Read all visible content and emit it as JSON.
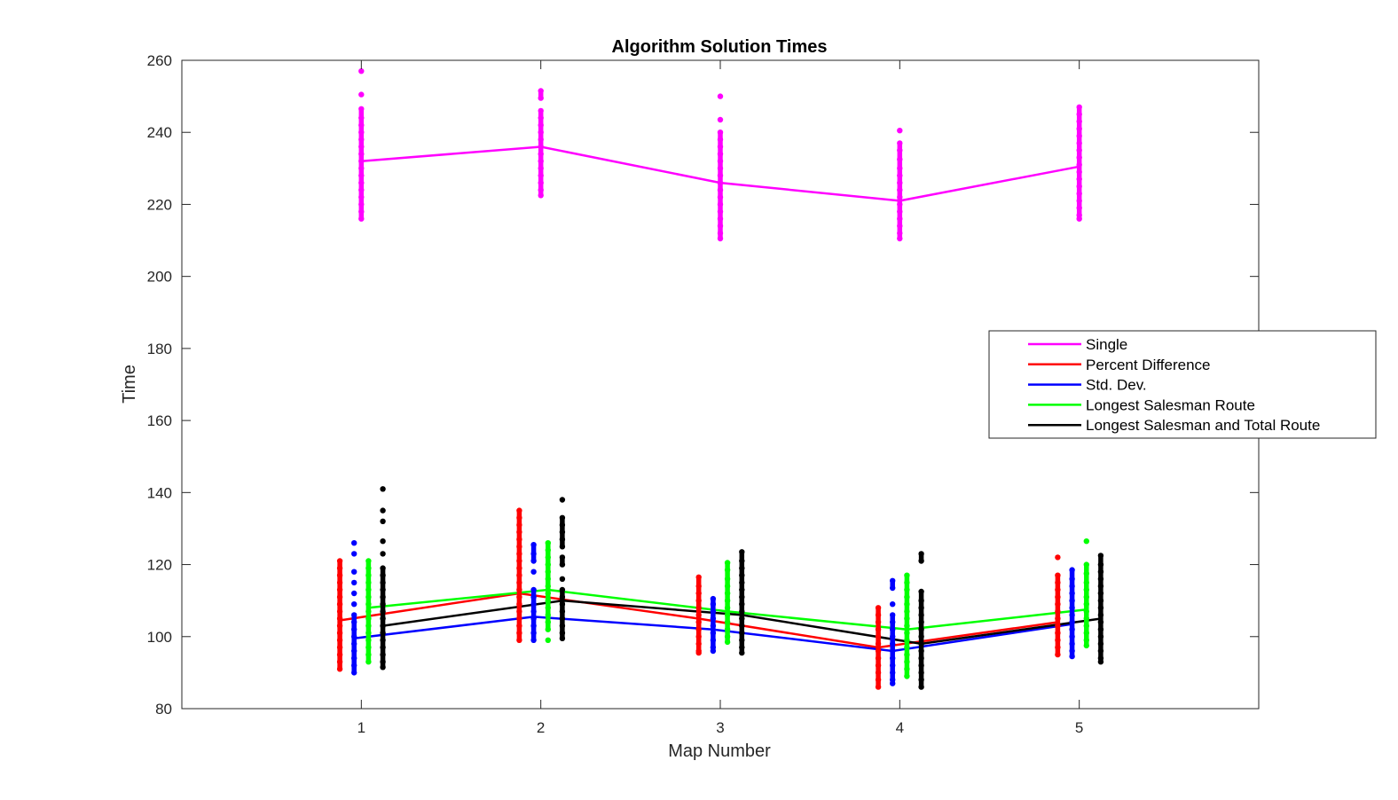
{
  "chart_data": {
    "type": "scatter",
    "title": "Algorithm Solution Times",
    "xlabel": "Map Number",
    "ylabel": "Time",
    "xlim": [
      0,
      6
    ],
    "ylim": [
      80,
      260
    ],
    "x_ticks": [
      1,
      2,
      3,
      4,
      5
    ],
    "y_ticks": [
      80,
      100,
      120,
      140,
      160,
      180,
      200,
      220,
      240,
      260
    ],
    "grid": false,
    "legend_position": "right",
    "series": [
      {
        "name": "Single",
        "color": "#ff00ff",
        "x_offset": 0,
        "means": [
          232,
          236,
          226,
          221,
          230.5
        ],
        "points": [
          [
            257,
            250.5,
            246.5,
            244,
            242,
            240,
            238,
            236,
            234,
            232,
            230,
            228,
            226,
            224,
            222,
            220,
            218,
            216
          ],
          [
            251.5,
            249.5,
            246,
            244,
            242,
            240,
            238,
            236,
            234,
            232,
            230,
            228,
            226,
            224,
            222.5
          ],
          [
            250,
            243.5,
            240,
            238,
            236,
            234,
            232,
            230,
            228,
            226,
            224,
            222,
            220,
            218,
            216,
            214,
            212,
            210.5
          ],
          [
            240.5,
            237,
            235,
            232.5,
            230,
            228,
            226,
            224,
            222,
            220,
            218,
            216,
            214,
            212,
            210.5
          ],
          [
            247,
            245,
            243,
            241,
            239,
            237,
            235,
            233,
            231,
            229,
            227,
            225,
            223,
            221,
            219,
            217,
            216
          ]
        ]
      },
      {
        "name": "Percent Difference",
        "color": "#ff0000",
        "x_offset": -0.12,
        "means": [
          104.5,
          112,
          105,
          97,
          104
        ],
        "points": [
          [
            121,
            119,
            117,
            115,
            113,
            111,
            109,
            107,
            105,
            103,
            101,
            99,
            97,
            95,
            93,
            91
          ],
          [
            135,
            133,
            131,
            129,
            127,
            125,
            123,
            121,
            119,
            117,
            115,
            113,
            111,
            109,
            107,
            105,
            103,
            101,
            99
          ],
          [
            116.5,
            114,
            112,
            110,
            108,
            106,
            104,
            102,
            100,
            98,
            96,
            95.5
          ],
          [
            108,
            106,
            104,
            102,
            100,
            98,
            96,
            94,
            92,
            90,
            88,
            86
          ],
          [
            122,
            117,
            115,
            113,
            111,
            109,
            107,
            105,
            103,
            101,
            99,
            97,
            95
          ]
        ]
      },
      {
        "name": "Std. Dev.",
        "color": "#0000ff",
        "x_offset": -0.04,
        "means": [
          99.5,
          105.5,
          102,
          96,
          103.5
        ],
        "points": [
          [
            126,
            123,
            118,
            115,
            112,
            109,
            106,
            104,
            102,
            100,
            98,
            96,
            94,
            92,
            90
          ],
          [
            125.5,
            123,
            121,
            118,
            113,
            111,
            109,
            107,
            105,
            103,
            101,
            99
          ],
          [
            110.5,
            109,
            107,
            105,
            103,
            101,
            99,
            97,
            96
          ],
          [
            115.5,
            113.5,
            109,
            106,
            104,
            102,
            100,
            98,
            96,
            94,
            92,
            90,
            88,
            87
          ],
          [
            118.5,
            116,
            114,
            112,
            110,
            108,
            106,
            104,
            102,
            100,
            98,
            96,
            94.5
          ]
        ]
      },
      {
        "name": "Longest Salesman Route",
        "color": "#00ff00",
        "x_offset": 0.04,
        "means": [
          108,
          113,
          107,
          102,
          107.5
        ],
        "points": [
          [
            121,
            119,
            117,
            115,
            113,
            111,
            109,
            107,
            105,
            103,
            101,
            99,
            97,
            95,
            93
          ],
          [
            126,
            124,
            122,
            120,
            118,
            116,
            114,
            112,
            110,
            108,
            106,
            104,
            102,
            99
          ],
          [
            120.5,
            118.5,
            116,
            114,
            112,
            110,
            108,
            106,
            104,
            102,
            100,
            98.5
          ],
          [
            117,
            115,
            113,
            111,
            109,
            107,
            105,
            103,
            101,
            99,
            97,
            95,
            93,
            91,
            89
          ],
          [
            126.5,
            120,
            117.5,
            115,
            113,
            111,
            109,
            107,
            105,
            103,
            101,
            99,
            97.5
          ]
        ]
      },
      {
        "name": "Longest Salesman and Total Route",
        "color": "#000000",
        "x_offset": 0.12,
        "means": [
          103,
          110,
          106,
          98,
          105
        ],
        "points": [
          [
            141,
            135,
            132,
            126.5,
            123,
            119,
            117,
            115,
            113,
            111,
            109,
            107,
            105,
            103,
            101,
            99,
            97,
            95,
            93,
            91.5
          ],
          [
            138,
            133,
            131,
            129,
            127,
            125,
            122,
            120,
            116,
            113,
            111,
            109,
            107,
            105,
            103,
            101,
            99.5
          ],
          [
            123.5,
            121,
            119,
            117,
            115,
            113,
            111,
            109,
            107,
            105,
            103,
            101,
            99,
            97,
            95.5
          ],
          [
            123,
            121,
            112.5,
            110,
            108,
            106,
            104,
            102,
            100,
            98,
            96,
            94,
            92,
            90,
            88,
            86
          ],
          [
            122.5,
            120,
            118,
            116,
            114,
            112,
            110,
            108,
            106,
            104,
            102,
            100,
            98,
            96,
            94,
            93
          ]
        ]
      }
    ]
  }
}
